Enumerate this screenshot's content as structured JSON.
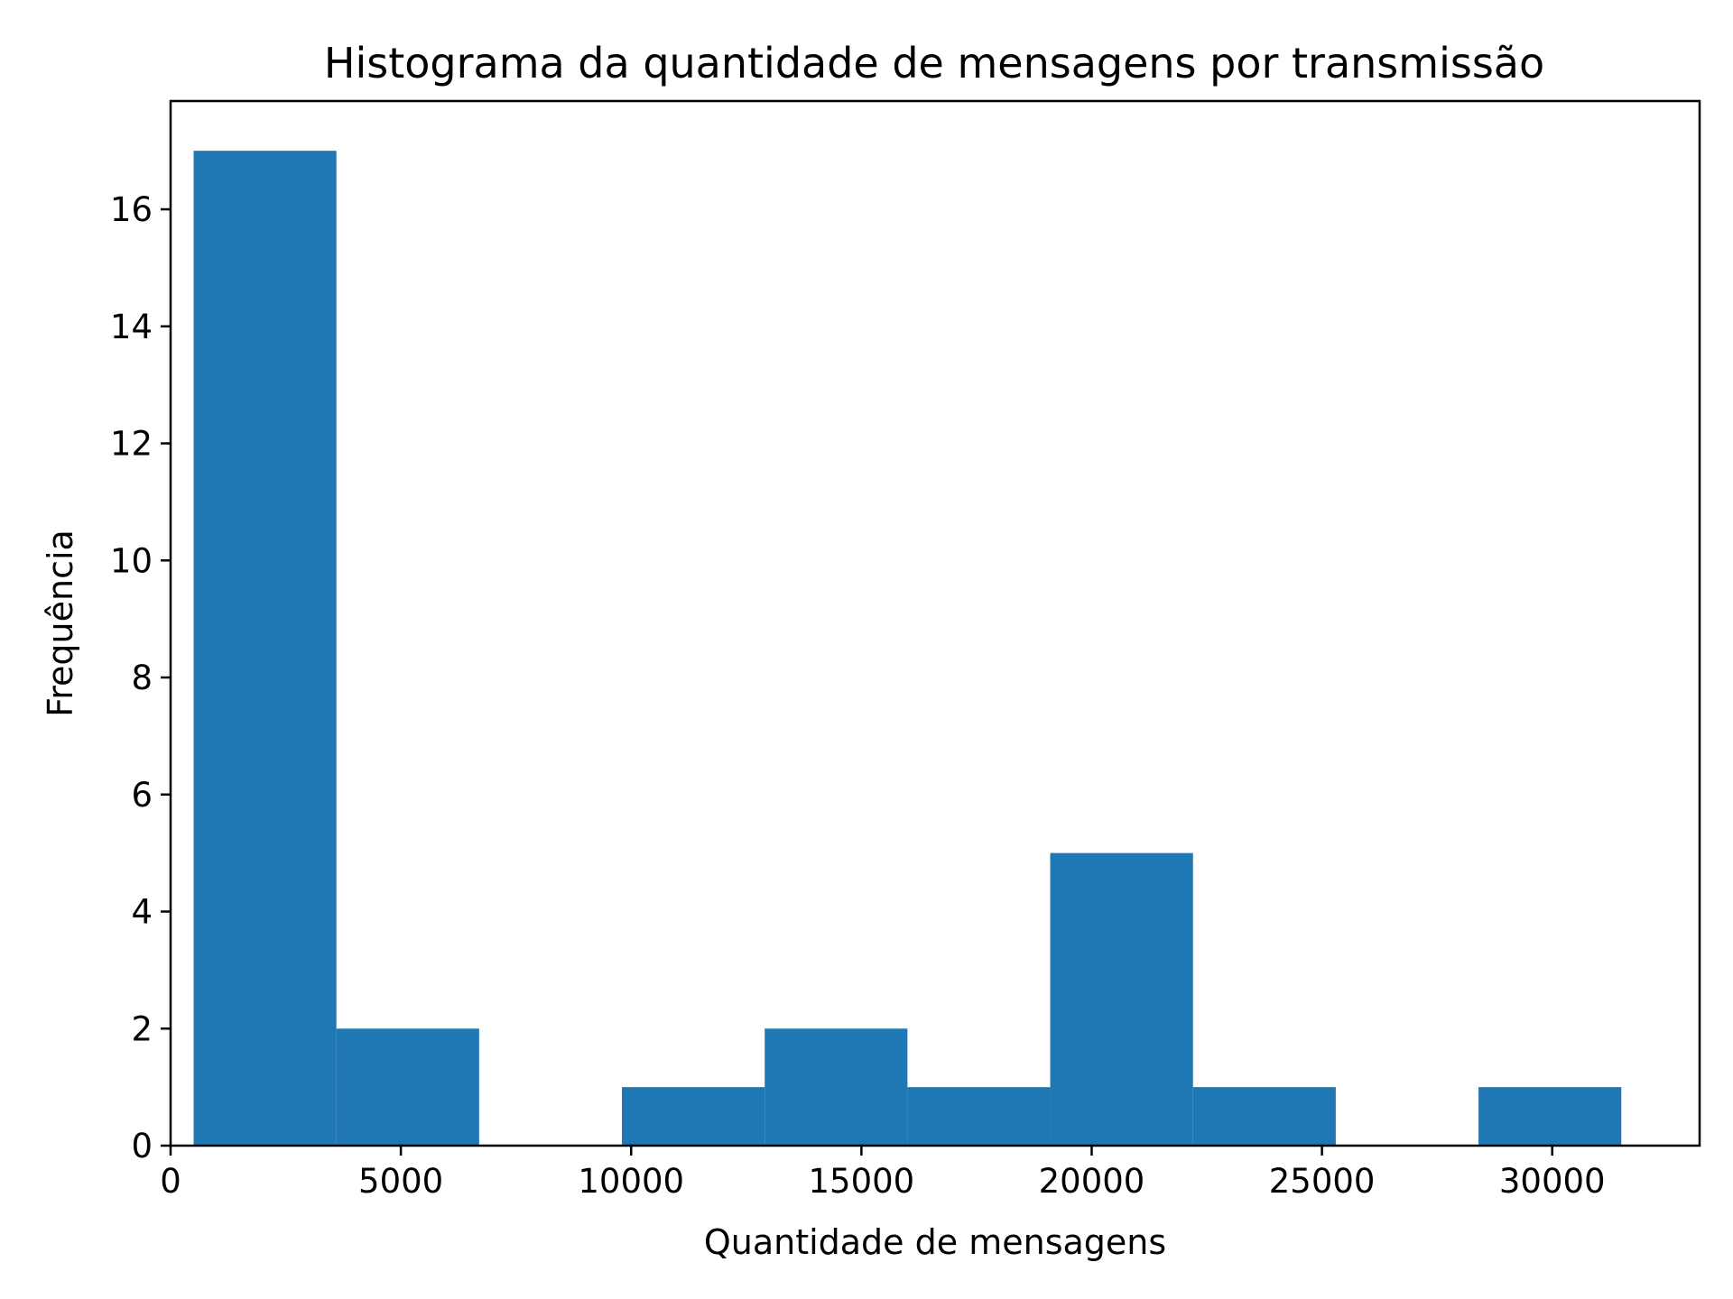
{
  "chart_data": {
    "type": "bar",
    "subtype": "histogram",
    "title": "Histograma da quantidade de mensagens por transmissão",
    "xlabel": "Quantidade de mensagens",
    "ylabel": "Frequência",
    "xlim": [
      0,
      33200
    ],
    "ylim": [
      0,
      17.85
    ],
    "xticks": [
      0,
      5000,
      10000,
      15000,
      20000,
      25000,
      30000
    ],
    "yticks": [
      0,
      2,
      4,
      6,
      8,
      10,
      12,
      14,
      16
    ],
    "bin_edges": [
      500,
      3600,
      6700,
      9800,
      12900,
      16000,
      19100,
      22200,
      25300,
      28400,
      31500
    ],
    "values": [
      17,
      2,
      0,
      1,
      2,
      1,
      5,
      1,
      0,
      1
    ],
    "bar_color": "#1f77b4",
    "grid": false,
    "legend": "none"
  }
}
